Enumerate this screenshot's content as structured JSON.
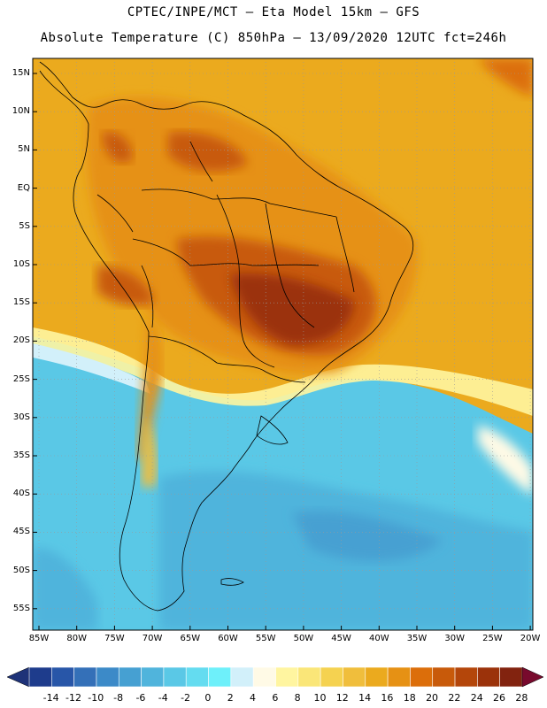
{
  "header": {
    "line1": "CPTEC/INPE/MCT –  Eta Model 15km – GFS",
    "line2": "Absolute Temperature (C) 850hPa – 13/09/2020 12UTC fct=246h"
  },
  "axes": {
    "lat_labels": [
      "15N",
      "10N",
      "5N",
      "EQ",
      "5S",
      "10S",
      "15S",
      "20S",
      "25S",
      "30S",
      "35S",
      "40S",
      "45S",
      "50S",
      "55S"
    ],
    "lon_labels": [
      "85W",
      "80W",
      "75W",
      "70W",
      "65W",
      "60W",
      "55W",
      "50W",
      "45W",
      "40W",
      "35W",
      "30W",
      "25W",
      "20W"
    ]
  },
  "colorbar": {
    "labels": [
      "-14",
      "-12",
      "-10",
      "-8",
      "-6",
      "-4",
      "-2",
      "0",
      "2",
      "4",
      "6",
      "8",
      "10",
      "12",
      "14",
      "16",
      "18",
      "20",
      "22",
      "24",
      "26",
      "28"
    ],
    "colors": [
      "#1e3c8c",
      "#2856a8",
      "#3470b8",
      "#3c8ac8",
      "#46a0d2",
      "#50b4dc",
      "#5ac8e6",
      "#64dcf0",
      "#6ef0fa",
      "#d2f0fa",
      "#fffae6",
      "#fff5a0",
      "#fae678",
      "#f5d250",
      "#f0be3c",
      "#ebaa1e",
      "#e69114",
      "#dc6e0a",
      "#c85a0a",
      "#b4460a",
      "#9b320a",
      "#82230f"
    ],
    "low_color": "#1e3278",
    "high_color": "#780a2d"
  }
}
